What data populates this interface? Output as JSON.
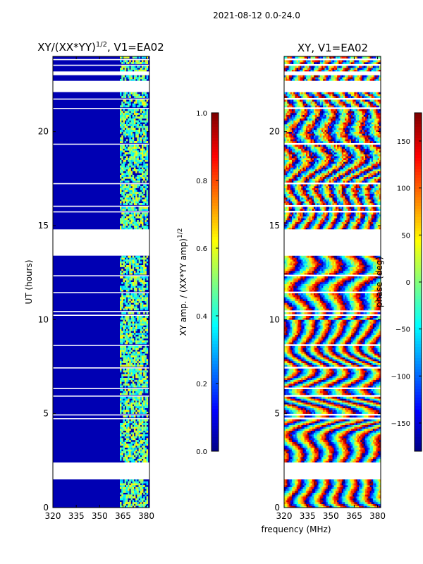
{
  "suptitle": "2021-08-12 0.0-24.0",
  "xlabel": "frequency (MHz)",
  "chart_data": [
    {
      "type": "heatmap",
      "title_main": "XY/(XX*YY)",
      "title_exp": "1/2",
      "title_suffix": ", V1=EA02",
      "ylabel": "UT (hours)",
      "xlim": [
        320,
        382
      ],
      "ylim": [
        0,
        24
      ],
      "xticks": [
        320,
        335,
        350,
        365,
        380
      ],
      "yticks": [
        0,
        5,
        10,
        15,
        20
      ],
      "colorbar": {
        "label_main": "XY amp. / (XX*YY amp)",
        "label_exp": "1/2",
        "range": [
          0.0,
          1.0
        ],
        "ticks": [
          "0.0",
          "0.2",
          "0.4",
          "0.6",
          "0.8",
          "1.0"
        ],
        "colormap": "jet"
      },
      "background_value": 0.05,
      "bright_band_mhz": [
        363,
        381
      ],
      "bright_band_value_range": [
        0.3,
        0.65
      ],
      "masked_hours": [
        [
          1.5,
          2.4
        ],
        [
          13.4,
          14.8
        ],
        [
          22.1,
          22.7
        ],
        [
          23.0,
          23.2
        ]
      ]
    },
    {
      "type": "heatmap",
      "title": "XY, V1=EA02",
      "xlim": [
        320,
        382
      ],
      "ylim": [
        0,
        24
      ],
      "xticks": [
        320,
        335,
        350,
        365,
        380
      ],
      "yticks": [
        0,
        5,
        10,
        15,
        20
      ],
      "colorbar": {
        "label": "phase (deg)",
        "range": [
          -180,
          180
        ],
        "ticks": [
          "-150",
          "-100",
          "-50",
          "0",
          "50",
          "100",
          "150"
        ],
        "colormap": "jet"
      },
      "phase_pattern": "vertical phase-wrapping stripes (~6 cycles across 320-382 MHz), slope varying with time",
      "masked_hours": [
        [
          1.5,
          2.4
        ],
        [
          13.4,
          14.8
        ],
        [
          22.1,
          22.7
        ],
        [
          23.0,
          23.2
        ]
      ]
    }
  ]
}
